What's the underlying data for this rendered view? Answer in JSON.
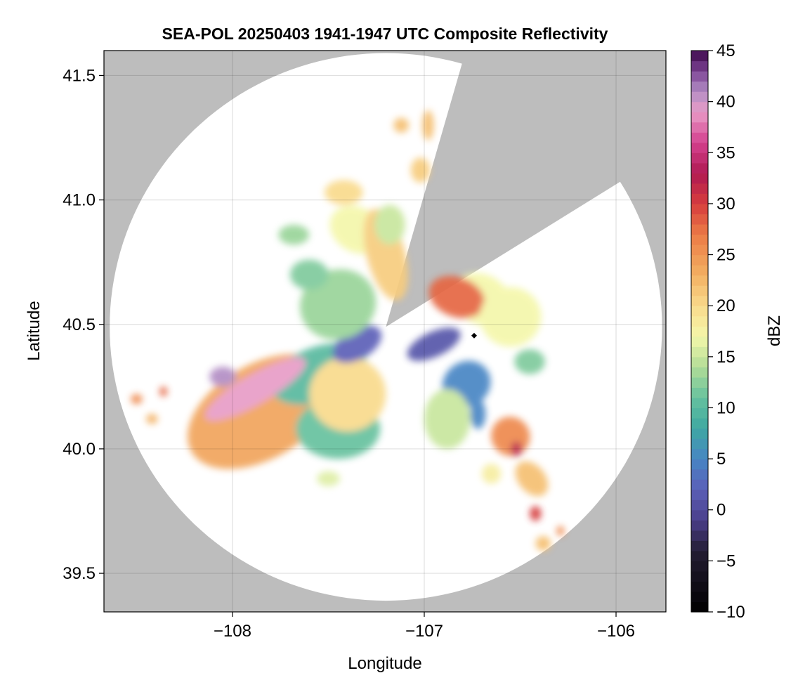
{
  "chart_data": {
    "type": "heatmap",
    "title": "SEA-POL 20250403 1941-1947 UTC Composite Reflectivity",
    "xlabel": "Longitude",
    "ylabel": "Latitude",
    "xlim": [
      -108.67,
      -105.74
    ],
    "ylim": [
      39.345,
      41.6
    ],
    "x_ticks": [
      -108,
      -107,
      -106
    ],
    "x_tick_labels": [
      "−108",
      "−107",
      "−106"
    ],
    "y_ticks": [
      39.5,
      40.0,
      40.5,
      41.0,
      41.5
    ],
    "y_tick_labels": [
      "39.5",
      "40.0",
      "40.5",
      "41.0",
      "41.5"
    ],
    "grid": true,
    "background_color": "#bdbdbd",
    "colorbar": {
      "label": "dBZ",
      "range": [
        -10,
        45
      ],
      "step": 1,
      "ticks": [
        -10,
        -5,
        0,
        5,
        10,
        15,
        20,
        25,
        30,
        35,
        40,
        45
      ],
      "tick_labels": [
        "−10",
        "−5",
        "0",
        "5",
        "10",
        "15",
        "20",
        "25",
        "30",
        "35",
        "40",
        "45"
      ],
      "colormap_stops": [
        {
          "value": -10,
          "color": "#000000"
        },
        {
          "value": -4,
          "color": "#241d33"
        },
        {
          "value": -1,
          "color": "#4a3f8a"
        },
        {
          "value": 2,
          "color": "#5b5fb8"
        },
        {
          "value": 5,
          "color": "#4785c4"
        },
        {
          "value": 8,
          "color": "#3ea8a2"
        },
        {
          "value": 11,
          "color": "#66c19e"
        },
        {
          "value": 14,
          "color": "#b2dd97"
        },
        {
          "value": 17,
          "color": "#f4f7aa"
        },
        {
          "value": 20,
          "color": "#f9da8c"
        },
        {
          "value": 23,
          "color": "#f3b163"
        },
        {
          "value": 27,
          "color": "#ec7b46"
        },
        {
          "value": 30,
          "color": "#d63d3d"
        },
        {
          "value": 33,
          "color": "#b01a53"
        },
        {
          "value": 36,
          "color": "#d4418f"
        },
        {
          "value": 39,
          "color": "#e89cc7"
        },
        {
          "value": 41,
          "color": "#b28dc4"
        },
        {
          "value": 43,
          "color": "#7d4394"
        },
        {
          "value": 45,
          "color": "#3d0a4a"
        }
      ]
    },
    "radar": {
      "name": "SEA-POL",
      "center_lon": -107.2,
      "center_lat": 40.49,
      "max_range_lon_deg": 1.44,
      "max_range_lat_deg": 1.1,
      "blocked_sector_deg": [
        16,
        58
      ],
      "coverage_color": "#ffffff"
    },
    "marker": {
      "lon": -106.74,
      "lat": 40.455,
      "shape": "diamond",
      "color": "#000000"
    },
    "echo_cells": [
      {
        "lon": -107.85,
        "lat": 40.15,
        "rlon": 0.42,
        "rlat": 0.19,
        "rot": -30,
        "dbz": 24
      },
      {
        "lon": -107.45,
        "lat": 40.08,
        "rlon": 0.22,
        "rlat": 0.12,
        "rot": 0,
        "dbz": 11
      },
      {
        "lon": -107.55,
        "lat": 40.3,
        "rlon": 0.26,
        "rlat": 0.11,
        "rot": -20,
        "dbz": 10
      },
      {
        "lon": -107.4,
        "lat": 40.22,
        "rlon": 0.2,
        "rlat": 0.15,
        "rot": 0,
        "dbz": 20
      },
      {
        "lon": -107.35,
        "lat": 40.42,
        "rlon": 0.14,
        "rlat": 0.06,
        "rot": -30,
        "dbz": 2
      },
      {
        "lon": -107.88,
        "lat": 40.24,
        "rlon": 0.3,
        "rlat": 0.06,
        "rot": -30,
        "dbz": 39
      },
      {
        "lon": -108.05,
        "lat": 40.29,
        "rlon": 0.07,
        "rlat": 0.04,
        "rot": 0,
        "dbz": 41
      },
      {
        "lon": -107.45,
        "lat": 40.58,
        "rlon": 0.2,
        "rlat": 0.14,
        "rot": -20,
        "dbz": 13
      },
      {
        "lon": -107.6,
        "lat": 40.7,
        "rlon": 0.1,
        "rlat": 0.06,
        "rot": 0,
        "dbz": 12
      },
      {
        "lon": -107.68,
        "lat": 40.86,
        "rlon": 0.08,
        "rlat": 0.04,
        "rot": 0,
        "dbz": 13
      },
      {
        "lon": -107.35,
        "lat": 40.88,
        "rlon": 0.15,
        "rlat": 0.09,
        "rot": 30,
        "dbz": 17
      },
      {
        "lon": -107.42,
        "lat": 41.03,
        "rlon": 0.1,
        "rlat": 0.05,
        "rot": 0,
        "dbz": 20
      },
      {
        "lon": -107.2,
        "lat": 40.78,
        "rlon": 0.1,
        "rlat": 0.19,
        "rot": -15,
        "dbz": 21
      },
      {
        "lon": -107.18,
        "lat": 40.9,
        "rlon": 0.08,
        "rlat": 0.08,
        "rot": 0,
        "dbz": 15
      },
      {
        "lon": -107.02,
        "lat": 41.12,
        "rlon": 0.05,
        "rlat": 0.05,
        "rot": 0,
        "dbz": 21
      },
      {
        "lon": -107.12,
        "lat": 41.3,
        "rlon": 0.04,
        "rlat": 0.03,
        "rot": 0,
        "dbz": 22
      },
      {
        "lon": -106.98,
        "lat": 41.3,
        "rlon": 0.03,
        "rlat": 0.06,
        "rot": 0,
        "dbz": 22
      },
      {
        "lon": -106.7,
        "lat": 40.6,
        "rlon": 0.16,
        "rlat": 0.1,
        "rot": 30,
        "dbz": 17
      },
      {
        "lon": -106.83,
        "lat": 40.61,
        "rlon": 0.15,
        "rlat": 0.08,
        "rot": 20,
        "dbz": 28
      },
      {
        "lon": -106.55,
        "lat": 40.53,
        "rlon": 0.16,
        "rlat": 0.12,
        "rot": 0,
        "dbz": 17
      },
      {
        "lon": -106.45,
        "lat": 40.35,
        "rlon": 0.08,
        "rlat": 0.05,
        "rot": 0,
        "dbz": 12
      },
      {
        "lon": -106.95,
        "lat": 40.42,
        "rlon": 0.15,
        "rlat": 0.05,
        "rot": -25,
        "dbz": 1
      },
      {
        "lon": -106.78,
        "lat": 40.26,
        "rlon": 0.13,
        "rlat": 0.09,
        "rot": -35,
        "dbz": 5
      },
      {
        "lon": -106.72,
        "lat": 40.14,
        "rlon": 0.04,
        "rlat": 0.06,
        "rot": 0,
        "dbz": 5
      },
      {
        "lon": -106.88,
        "lat": 40.12,
        "rlon": 0.12,
        "rlat": 0.12,
        "rot": 0,
        "dbz": 15
      },
      {
        "lon": -106.55,
        "lat": 40.05,
        "rlon": 0.1,
        "rlat": 0.08,
        "rot": -35,
        "dbz": 26
      },
      {
        "lon": -106.52,
        "lat": 40.0,
        "rlon": 0.03,
        "rlat": 0.03,
        "rot": 0,
        "dbz": 32
      },
      {
        "lon": -106.44,
        "lat": 39.88,
        "rlon": 0.07,
        "rlat": 0.08,
        "rot": -40,
        "dbz": 22
      },
      {
        "lon": -106.42,
        "lat": 39.74,
        "rlon": 0.03,
        "rlat": 0.03,
        "rot": 0,
        "dbz": 30
      },
      {
        "lon": -106.38,
        "lat": 39.62,
        "rlon": 0.04,
        "rlat": 0.03,
        "rot": 0,
        "dbz": 22
      },
      {
        "lon": -106.29,
        "lat": 39.67,
        "rlon": 0.02,
        "rlat": 0.02,
        "rot": 0,
        "dbz": 26
      },
      {
        "lon": -106.65,
        "lat": 39.9,
        "rlon": 0.05,
        "rlat": 0.04,
        "rot": 0,
        "dbz": 18
      },
      {
        "lon": -108.5,
        "lat": 40.2,
        "rlon": 0.03,
        "rlat": 0.02,
        "rot": 0,
        "dbz": 26
      },
      {
        "lon": -108.42,
        "lat": 40.12,
        "rlon": 0.03,
        "rlat": 0.02,
        "rot": 0,
        "dbz": 23
      },
      {
        "lon": -108.36,
        "lat": 40.23,
        "rlon": 0.02,
        "rlat": 0.02,
        "rot": 0,
        "dbz": 28
      },
      {
        "lon": -107.5,
        "lat": 39.88,
        "rlon": 0.06,
        "rlat": 0.03,
        "rot": 0,
        "dbz": 16
      }
    ]
  }
}
